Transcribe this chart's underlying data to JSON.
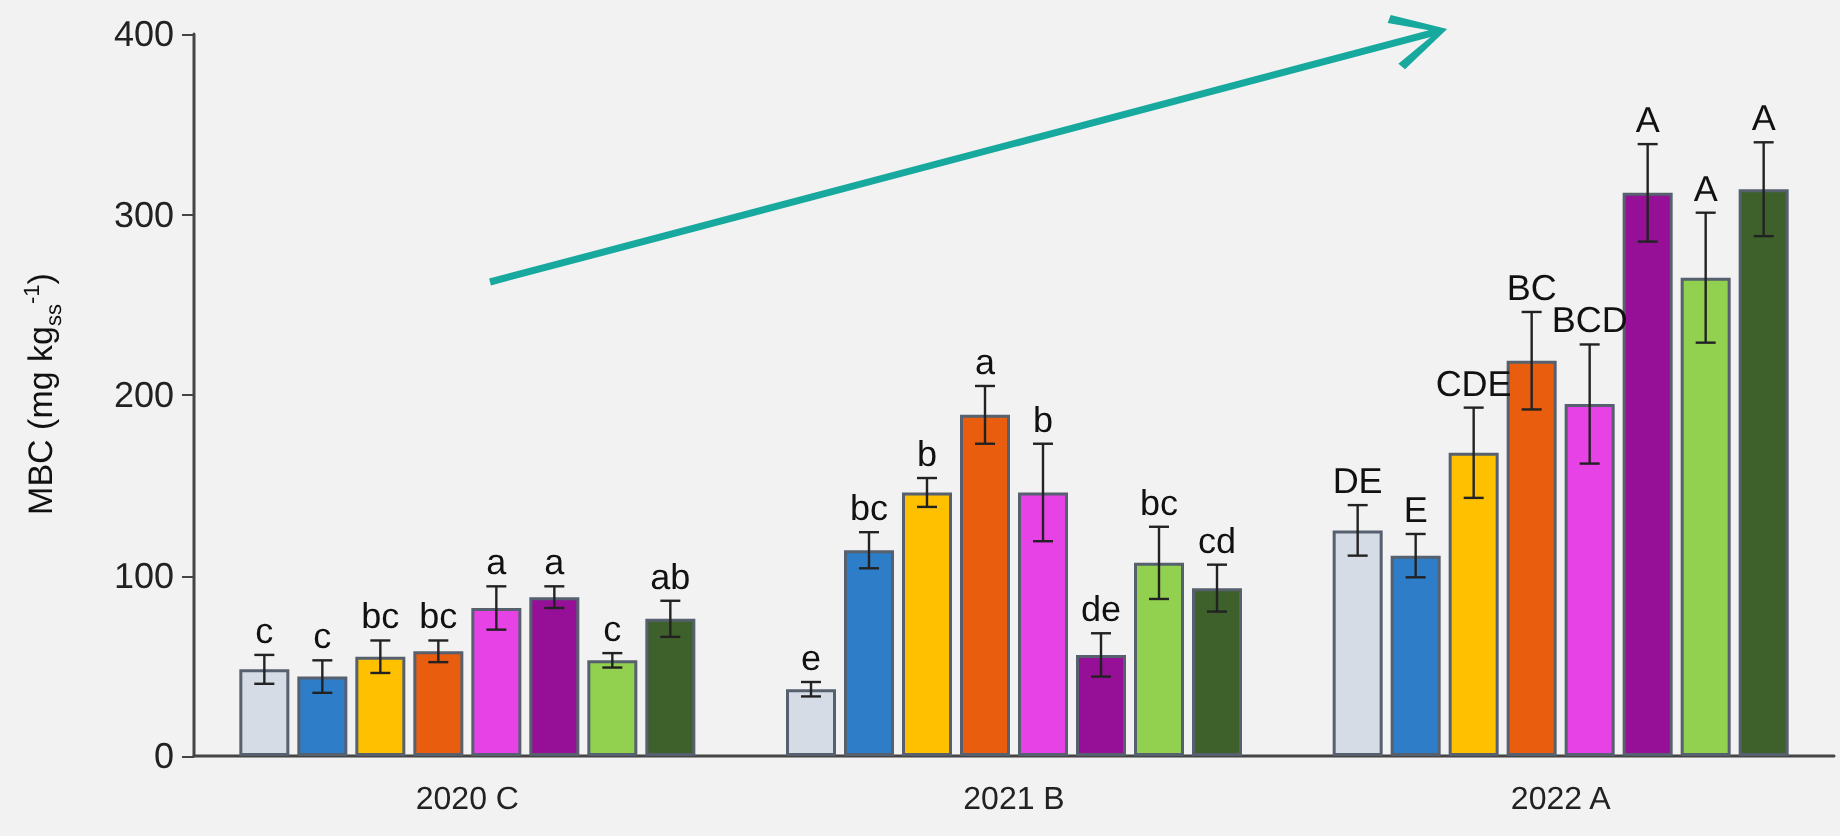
{
  "chart_data": {
    "type": "bar",
    "ylabel": "MBC (mg kg$_{ss}$$^{-1}$)",
    "categories": [
      "2020 C",
      "2021 B",
      "2022 A"
    ],
    "ylim": [
      0,
      400
    ],
    "yticks": [
      0,
      100,
      200,
      300,
      400
    ],
    "grid": false,
    "series": [
      {
        "color": "#d6dce5",
        "values": [
          48,
          37,
          125
        ],
        "errors": [
          8,
          4,
          14
        ],
        "value_labels": [
          "c",
          "e",
          "DE"
        ]
      },
      {
        "color": "#2e7dc9",
        "values": [
          44,
          114,
          111
        ],
        "errors": [
          9,
          10,
          12
        ],
        "value_labels": [
          "c",
          "bc",
          "E"
        ]
      },
      {
        "color": "#ffc000",
        "values": [
          55,
          146,
          168
        ],
        "errors": [
          9,
          8,
          25
        ],
        "value_labels": [
          "bc",
          "b",
          "CDE"
        ]
      },
      {
        "color": "#e85d0e",
        "values": [
          58,
          189,
          219
        ],
        "errors": [
          6,
          16,
          27
        ],
        "value_labels": [
          "bc",
          "a",
          "BC"
        ]
      },
      {
        "color": "#e642e6",
        "values": [
          82,
          146,
          195
        ],
        "errors": [
          12,
          27,
          33
        ],
        "value_labels": [
          "a",
          "b",
          "BCD"
        ]
      },
      {
        "color": "#951096",
        "values": [
          88,
          56,
          312
        ],
        "errors": [
          6,
          12,
          27
        ],
        "value_labels": [
          "a",
          "de",
          "A"
        ]
      },
      {
        "color": "#92d050",
        "values": [
          53,
          107,
          265
        ],
        "errors": [
          4,
          20,
          36
        ],
        "value_labels": [
          "c",
          "bc",
          "A"
        ]
      },
      {
        "color": "#3e602a",
        "values": [
          76,
          93,
          314
        ],
        "errors": [
          10,
          13,
          26
        ],
        "value_labels": [
          "ab",
          "cd",
          "A"
        ]
      }
    ]
  }
}
